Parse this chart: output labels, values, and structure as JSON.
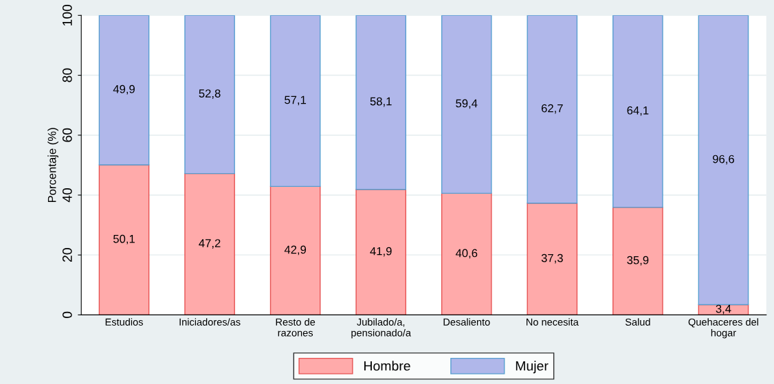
{
  "chart_data": {
    "type": "bar",
    "stacked": true,
    "ylabel": "Porcentaje (%)",
    "categories": [
      "Estudios",
      "Iniciadores/as",
      "Resto de\nrazones",
      "Jubilado/a,\npensionado/a",
      "Desaliento",
      "No necesita",
      "Salud",
      "Quehaceres del\nhogar"
    ],
    "series": [
      {
        "name": "Hombre",
        "color": "#ffaaaa",
        "values": [
          50.1,
          47.2,
          42.9,
          41.9,
          40.6,
          37.3,
          35.9,
          3.4
        ],
        "value_labels": [
          "50,1",
          "47,2",
          "42,9",
          "41,9",
          "40,6",
          "37,3",
          "35,9",
          "3,4"
        ]
      },
      {
        "name": "Mujer",
        "color": "#b0b7ea",
        "values": [
          49.9,
          52.8,
          57.1,
          58.1,
          59.4,
          62.7,
          64.1,
          96.6
        ],
        "value_labels": [
          "49,9",
          "52,8",
          "57,1",
          "58,1",
          "59,4",
          "62,7",
          "64,1",
          "96,6"
        ]
      }
    ],
    "ylim": [
      0,
      100
    ],
    "yticks": [
      0,
      20,
      40,
      60,
      80,
      100
    ],
    "grid": "y",
    "legend": "bottom"
  }
}
